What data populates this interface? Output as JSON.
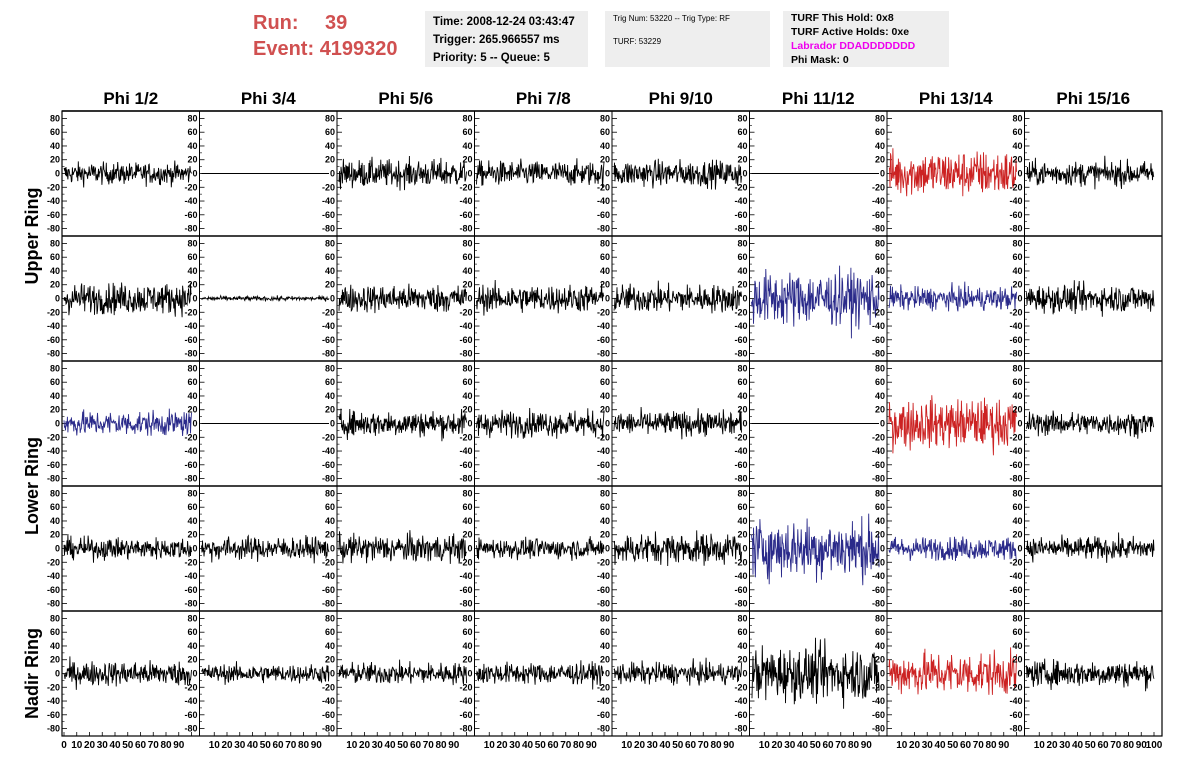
{
  "header": {
    "run_label": "Run:",
    "run_value": "39",
    "event_label": "Event:",
    "event_value": "4199320",
    "time": "Time: 2008-12-24 03:43:47",
    "trigger": "Trigger: 265.966557 ms",
    "priority": "Priority: 5 -- Queue: 5",
    "trig_num": "Trig Num: 53220 -- Trig Type: RF",
    "turf": "TURF: 53229",
    "turf_hold": "TURF This Hold: 0x8",
    "turf_active": "TURF Active Holds: 0xe",
    "labrador": "Labrador DDADDDDDDD",
    "phi_mask": "Phi Mask: 0"
  },
  "chart_data": {
    "type": "line",
    "title": "",
    "columns": [
      "Phi 1/2",
      "Phi 3/4",
      "Phi 5/6",
      "Phi 7/8",
      "Phi 9/10",
      "Phi 11/12",
      "Phi 13/14",
      "Phi 15/16"
    ],
    "ring_labels": [
      {
        "label": "Upper Ring",
        "rows": [
          0,
          1
        ]
      },
      {
        "label": "Lower Ring",
        "rows": [
          2,
          3
        ]
      },
      {
        "label": "Nadir Ring",
        "rows": [
          4
        ]
      }
    ],
    "ylim": [
      -85,
      85
    ],
    "yticks": [
      -80,
      -60,
      -40,
      -20,
      0,
      20,
      40,
      60,
      80
    ],
    "xlim": [
      0,
      100
    ],
    "xtick_labels": [
      "0",
      "10",
      "20",
      "30",
      "40",
      "50",
      "60",
      "70",
      "80",
      "90",
      "100"
    ],
    "colors": {
      "normal": "#000000",
      "triggered": "#cc2222",
      "l2": "#2a2a8a"
    },
    "panels": [
      [
        {
          "amp": 14,
          "color": "normal"
        },
        {
          "amp": 0,
          "color": "normal"
        },
        {
          "amp": 18,
          "color": "normal"
        },
        {
          "amp": 16,
          "color": "normal"
        },
        {
          "amp": 17,
          "color": "normal"
        },
        {
          "amp": 0,
          "color": "normal"
        },
        {
          "amp": 30,
          "color": "triggered"
        },
        {
          "amp": 16,
          "color": "normal"
        }
      ],
      [
        {
          "amp": 20,
          "color": "normal"
        },
        {
          "amp": 3,
          "color": "normal"
        },
        {
          "amp": 18,
          "color": "normal"
        },
        {
          "amp": 18,
          "color": "normal"
        },
        {
          "amp": 18,
          "color": "normal"
        },
        {
          "amp": 35,
          "color": "l2"
        },
        {
          "amp": 15,
          "color": "l2"
        },
        {
          "amp": 18,
          "color": "normal"
        }
      ],
      [
        {
          "amp": 16,
          "color": "l2"
        },
        {
          "amp": 0,
          "color": "normal"
        },
        {
          "amp": 17,
          "color": "normal"
        },
        {
          "amp": 17,
          "color": "normal"
        },
        {
          "amp": 16,
          "color": "normal"
        },
        {
          "amp": 0,
          "color": "normal"
        },
        {
          "amp": 32,
          "color": "triggered"
        },
        {
          "amp": 15,
          "color": "normal"
        }
      ],
      [
        {
          "amp": 14,
          "color": "normal"
        },
        {
          "amp": 15,
          "color": "normal"
        },
        {
          "amp": 18,
          "color": "normal"
        },
        {
          "amp": 13,
          "color": "normal"
        },
        {
          "amp": 20,
          "color": "normal"
        },
        {
          "amp": 38,
          "color": "l2"
        },
        {
          "amp": 15,
          "color": "l2"
        },
        {
          "amp": 15,
          "color": "normal"
        }
      ],
      [
        {
          "amp": 16,
          "color": "normal"
        },
        {
          "amp": 12,
          "color": "normal"
        },
        {
          "amp": 14,
          "color": "normal"
        },
        {
          "amp": 14,
          "color": "normal"
        },
        {
          "amp": 14,
          "color": "normal"
        },
        {
          "amp": 35,
          "color": "normal"
        },
        {
          "amp": 28,
          "color": "triggered"
        },
        {
          "amp": 17,
          "color": "normal"
        }
      ]
    ]
  }
}
